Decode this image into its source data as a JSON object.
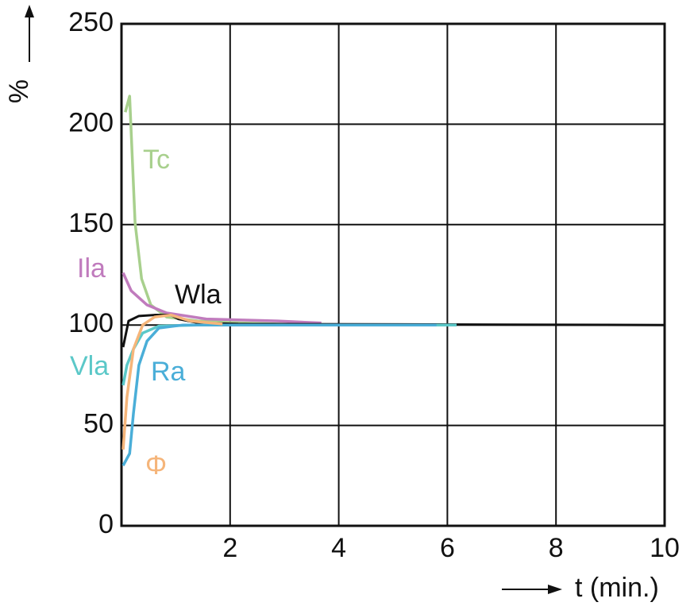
{
  "chart_data": {
    "type": "line",
    "xlabel": "t (min.)",
    "ylabel": "%",
    "xlim": [
      0,
      10
    ],
    "ylim": [
      0,
      250
    ],
    "xticks": [
      2,
      4,
      6,
      8,
      10
    ],
    "yticks": [
      0,
      50,
      100,
      150,
      200,
      250
    ],
    "grid": true,
    "series": [
      {
        "name": "Tc",
        "color": "#a8d08d",
        "x": [
          0.07,
          0.15,
          0.25,
          0.37,
          0.54,
          0.83,
          1.4,
          2.2,
          3.5
        ],
        "values": [
          206,
          214,
          151,
          123,
          110,
          104,
          102,
          101,
          100
        ]
      },
      {
        "name": "Ila",
        "color": "#c07bbd",
        "x": [
          0.03,
          0.18,
          0.47,
          0.83,
          1.56,
          2.88,
          3.68
        ],
        "values": [
          126,
          117,
          110,
          106,
          103,
          102,
          101
        ]
      },
      {
        "name": "Wla",
        "color": "#111111",
        "x": [
          0.03,
          0.13,
          0.32,
          0.61,
          0.91,
          1.05,
          1.42,
          2.15,
          10
        ],
        "values": [
          89,
          102,
          104.5,
          105,
          105,
          103,
          101,
          100.5,
          100
        ]
      },
      {
        "name": "Vla",
        "color": "#5bc8c8",
        "x": [
          0.03,
          0.1,
          0.22,
          0.39,
          0.69,
          1.4,
          6.17
        ],
        "values": [
          70,
          80,
          88,
          96,
          99.5,
          100,
          100
        ]
      },
      {
        "name": "Ra",
        "color": "#4aaed8",
        "x": [
          0.03,
          0.15,
          0.22,
          0.32,
          0.47,
          0.69,
          1.13,
          5.8
        ],
        "values": [
          30,
          36,
          56,
          80,
          92,
          98.5,
          100,
          100
        ]
      },
      {
        "name": "Φ",
        "color": "#f5b57a",
        "x": [
          0.03,
          0.1,
          0.22,
          0.39,
          0.61,
          0.91,
          1.27,
          1.86
        ],
        "values": [
          38,
          64,
          88,
          100,
          104,
          105,
          102,
          100.5
        ]
      }
    ]
  }
}
